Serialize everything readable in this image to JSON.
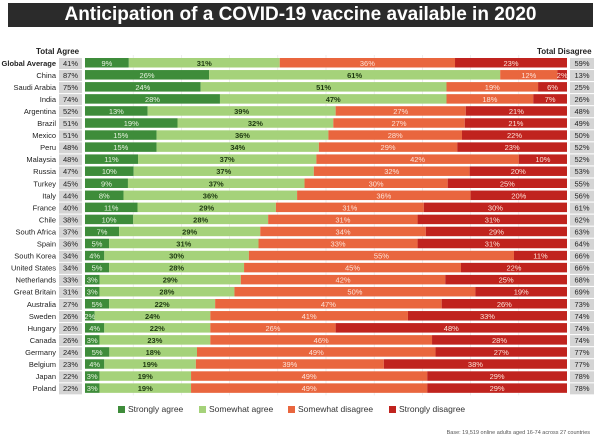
{
  "title": "Anticipation of a COVID-19 vaccine available in 2020",
  "header_left": "Total Agree",
  "header_right": "Total Disagree",
  "footnote": "Base: 19,519 online adults aged 16-74 across 27 countries",
  "colors": {
    "strongly_agree": "#3e8c3a",
    "somewhat_agree": "#a5d27a",
    "somewhat_disagree": "#e9663e",
    "strongly_disagree": "#c0231e",
    "total_box": "#d4d4d4",
    "title_bg": "#2b2b2b"
  },
  "legend": [
    {
      "label": "Strongly agree",
      "color": "#3e8c3a"
    },
    {
      "label": "Somewhat agree",
      "color": "#a5d27a"
    },
    {
      "label": "Somewhat disagree",
      "color": "#e9663e"
    },
    {
      "label": "Strongly disagree",
      "color": "#c0231e"
    }
  ],
  "chart_data": {
    "type": "bar",
    "orientation": "horizontal-stacked-100",
    "title": "Anticipation of a COVID-19 vaccine available in 2020",
    "xlabel": "",
    "ylabel": "",
    "legend_position": "bottom",
    "grid": true,
    "categories": [
      "Global Average",
      "China",
      "Saudi Arabia",
      "India",
      "Argentina",
      "Brazil",
      "Mexico",
      "Peru",
      "Malaysia",
      "Russia",
      "Turkey",
      "Italy",
      "France",
      "Chile",
      "South Africa",
      "Spain",
      "South Korea",
      "United States",
      "Netherlands",
      "Great Britain",
      "Australia",
      "Sweden",
      "Hungary",
      "Canada",
      "Germany",
      "Belgium",
      "Japan",
      "Poland"
    ],
    "total_agree": [
      41,
      87,
      75,
      74,
      52,
      51,
      51,
      48,
      48,
      47,
      45,
      44,
      40,
      38,
      37,
      36,
      34,
      34,
      33,
      31,
      27,
      26,
      26,
      26,
      24,
      23,
      22,
      22
    ],
    "total_disagree": [
      59,
      13,
      25,
      26,
      48,
      49,
      50,
      52,
      52,
      53,
      55,
      56,
      61,
      62,
      63,
      64,
      66,
      66,
      68,
      69,
      73,
      74,
      74,
      74,
      77,
      77,
      78,
      78
    ],
    "series": [
      {
        "name": "Strongly agree",
        "values": [
          9,
          26,
          24,
          28,
          13,
          19,
          15,
          15,
          11,
          10,
          9,
          8,
          11,
          10,
          7,
          5,
          4,
          5,
          3,
          3,
          5,
          2,
          4,
          3,
          5,
          4,
          3,
          3
        ]
      },
      {
        "name": "Somewhat agree",
        "values": [
          31,
          61,
          51,
          47,
          39,
          32,
          36,
          34,
          37,
          37,
          37,
          36,
          29,
          28,
          29,
          31,
          30,
          28,
          29,
          28,
          22,
          24,
          22,
          23,
          18,
          19,
          19,
          19
        ]
      },
      {
        "name": "Somewhat disagree",
        "values": [
          36,
          12,
          19,
          18,
          27,
          27,
          28,
          29,
          42,
          32,
          30,
          36,
          31,
          31,
          34,
          33,
          55,
          45,
          42,
          50,
          47,
          41,
          26,
          46,
          49,
          39,
          49,
          49
        ]
      },
      {
        "name": "Strongly disagree",
        "values": [
          23,
          2,
          6,
          7,
          21,
          21,
          22,
          23,
          10,
          20,
          25,
          20,
          30,
          31,
          29,
          31,
          11,
          22,
          25,
          19,
          26,
          33,
          48,
          28,
          27,
          38,
          29,
          29
        ]
      }
    ]
  }
}
